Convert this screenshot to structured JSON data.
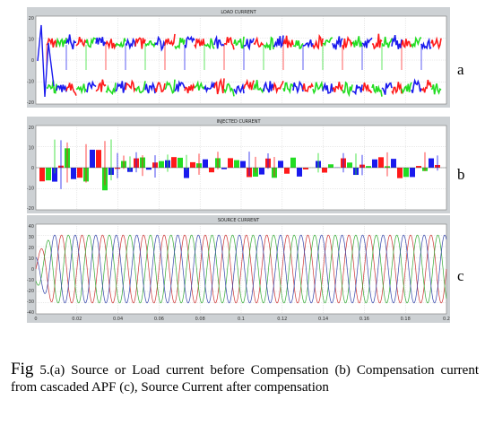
{
  "top_strip": "",
  "panels": [
    {
      "id": "a",
      "title": "LOAD CURRENT",
      "yticks": [
        "20",
        "10",
        "0",
        "-10",
        "-20"
      ],
      "label": "a"
    },
    {
      "id": "b",
      "title": "INJECTED CURRENT",
      "yticks": [
        "20",
        "10",
        "0",
        "-10",
        "-20"
      ],
      "label": "b"
    },
    {
      "id": "c",
      "title": "SOURCE CURRENT",
      "yticks": [
        "40",
        "30",
        "20",
        "10",
        "0",
        "-10",
        "-20",
        "-30",
        "-40"
      ],
      "label": "c",
      "xticks": [
        "0",
        "0.02",
        "0.04",
        "0.06",
        "0.08",
        "0.1",
        "0.12",
        "0.14",
        "0.16",
        "0.18",
        "0.2"
      ]
    }
  ],
  "caption": {
    "fig": "Fig",
    "text": "5.(a) Source or Load current before Compensation (b) Compensation current from cascaded APF (c), Source Current after compensation"
  },
  "colors": {
    "phase_a": "#ff1a1a",
    "phase_b": "#22dd22",
    "phase_c": "#1a1aee",
    "panel_bg": "#cdd1d4",
    "plot_bg": "#ffffff"
  }
}
